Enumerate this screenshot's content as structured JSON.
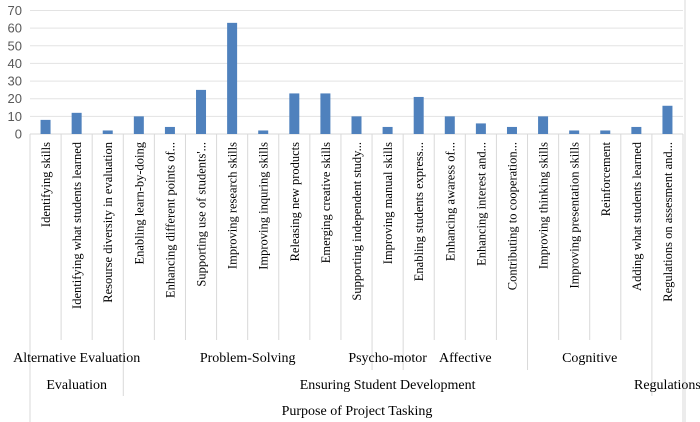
{
  "chart_data": {
    "type": "bar",
    "title": "",
    "xlabel": "Purpose of Project Tasking",
    "ylabel": "",
    "ylim": [
      0,
      70
    ],
    "yticks": [
      0,
      10,
      20,
      30,
      40,
      50,
      60,
      70
    ],
    "grid": true,
    "legend": "none",
    "color": "#4f81bd",
    "categories": [
      "Identifying skills",
      "Identifying what students learned",
      "Resourse diversity in evaluation",
      "Enabling learn-by-doing",
      "Enhancing different points of...",
      "Supporting use of students'...",
      "Improving research skills",
      "Improving inquring skills",
      "Releasing new products",
      "Emerging creative skills",
      "Supporting independent study...",
      "Improving manual skills",
      "Enabling students express...",
      "Enhancing awaress of...",
      "Enhancing interest and...",
      "Contributing to cooperation...",
      "Improving thinking skills",
      "Improving presentation skills",
      "Reinforcement",
      "Adding what students learned",
      "Regulations on assesment and..."
    ],
    "values": [
      8,
      12,
      2,
      10,
      4,
      25,
      63,
      2,
      23,
      23,
      10,
      4,
      21,
      10,
      6,
      4,
      10,
      2,
      2,
      4,
      16
    ],
    "groups_level1": [
      {
        "label": "Alternative Evaluation",
        "start": 0,
        "end": 2
      },
      {
        "label": "Problem-Solving",
        "start": 3,
        "end": 10
      },
      {
        "label": "Psycho-motor",
        "start": 11,
        "end": 11
      },
      {
        "label": "Affective",
        "start": 12,
        "end": 15
      },
      {
        "label": "Cognitive",
        "start": 16,
        "end": 19
      },
      {
        "label": "",
        "start": 20,
        "end": 20
      }
    ],
    "groups_level2": [
      {
        "label": "Evaluation",
        "start": 0,
        "end": 2
      },
      {
        "label": "Ensuring Student Development",
        "start": 3,
        "end": 19
      },
      {
        "label": "Regulations",
        "start": 20,
        "end": 20
      }
    ]
  }
}
